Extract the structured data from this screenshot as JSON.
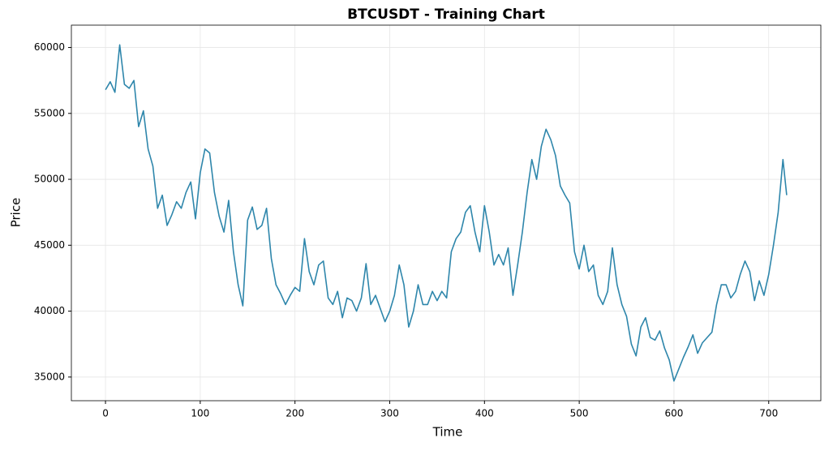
{
  "chart_data": {
    "type": "line",
    "title": "BTCUSDT - Training Chart",
    "xlabel": "Time",
    "ylabel": "Price",
    "x": [
      0,
      5,
      10,
      15,
      20,
      25,
      30,
      35,
      40,
      45,
      50,
      55,
      60,
      65,
      70,
      75,
      80,
      85,
      90,
      95,
      100,
      105,
      110,
      115,
      120,
      125,
      130,
      135,
      140,
      145,
      150,
      155,
      160,
      165,
      170,
      175,
      180,
      185,
      190,
      195,
      200,
      205,
      210,
      215,
      220,
      225,
      230,
      235,
      240,
      245,
      250,
      255,
      260,
      265,
      270,
      275,
      280,
      285,
      290,
      295,
      300,
      305,
      310,
      315,
      320,
      325,
      330,
      335,
      340,
      345,
      350,
      355,
      360,
      365,
      370,
      375,
      380,
      385,
      390,
      395,
      400,
      405,
      410,
      415,
      420,
      425,
      430,
      435,
      440,
      445,
      450,
      455,
      460,
      465,
      470,
      475,
      480,
      485,
      490,
      495,
      500,
      505,
      510,
      515,
      520,
      525,
      530,
      535,
      540,
      545,
      550,
      555,
      560,
      565,
      570,
      575,
      580,
      585,
      590,
      595,
      600,
      605,
      610,
      615,
      620,
      625,
      630,
      635,
      640,
      645,
      650,
      655,
      660,
      665,
      670,
      675,
      680,
      685,
      690,
      695,
      700,
      705,
      710,
      715,
      719
    ],
    "values": [
      56800,
      57400,
      56600,
      60200,
      57200,
      56900,
      57500,
      54000,
      55200,
      52300,
      51000,
      47800,
      48800,
      46500,
      47300,
      48300,
      47800,
      49000,
      49800,
      47000,
      50500,
      52300,
      52000,
      49000,
      47200,
      46000,
      48400,
      44500,
      42000,
      40400,
      46900,
      47900,
      46200,
      46500,
      47800,
      44000,
      42000,
      41300,
      40500,
      41200,
      41800,
      41500,
      45500,
      43000,
      42000,
      43500,
      43800,
      41000,
      40500,
      41500,
      39500,
      41000,
      40800,
      40000,
      41000,
      43600,
      40500,
      41200,
      40200,
      39200,
      40000,
      41200,
      43500,
      42000,
      38800,
      40000,
      42000,
      40500,
      40500,
      41500,
      40800,
      41500,
      41000,
      44500,
      45500,
      46000,
      47500,
      48000,
      46000,
      44500,
      48000,
      46000,
      43500,
      44300,
      43500,
      44800,
      41200,
      43500,
      46000,
      49000,
      51500,
      50000,
      52500,
      53800,
      53000,
      51800,
      49500,
      48800,
      48200,
      44500,
      43200,
      45000,
      43000,
      43500,
      41200,
      40500,
      41500,
      44800,
      42000,
      40500,
      39600,
      37500,
      36600,
      38800,
      39500,
      38000,
      37800,
      38500,
      37200,
      36300,
      34700,
      35600,
      36500,
      37300,
      38200,
      36800,
      37600,
      38000,
      38400,
      40500,
      42000,
      42000,
      41000,
      41500,
      42800,
      43800,
      43000,
      40800,
      42300,
      41200,
      42800,
      45000,
      47500,
      51500,
      48800
    ],
    "color": "#2e86ab",
    "xlim": [
      -36,
      755
    ],
    "xticks": [
      0,
      100,
      200,
      300,
      400,
      500,
      600,
      700
    ],
    "ylim": [
      33205,
      61695
    ],
    "yticks": [
      35000,
      40000,
      45000,
      50000,
      55000,
      60000
    ],
    "grid": true
  }
}
